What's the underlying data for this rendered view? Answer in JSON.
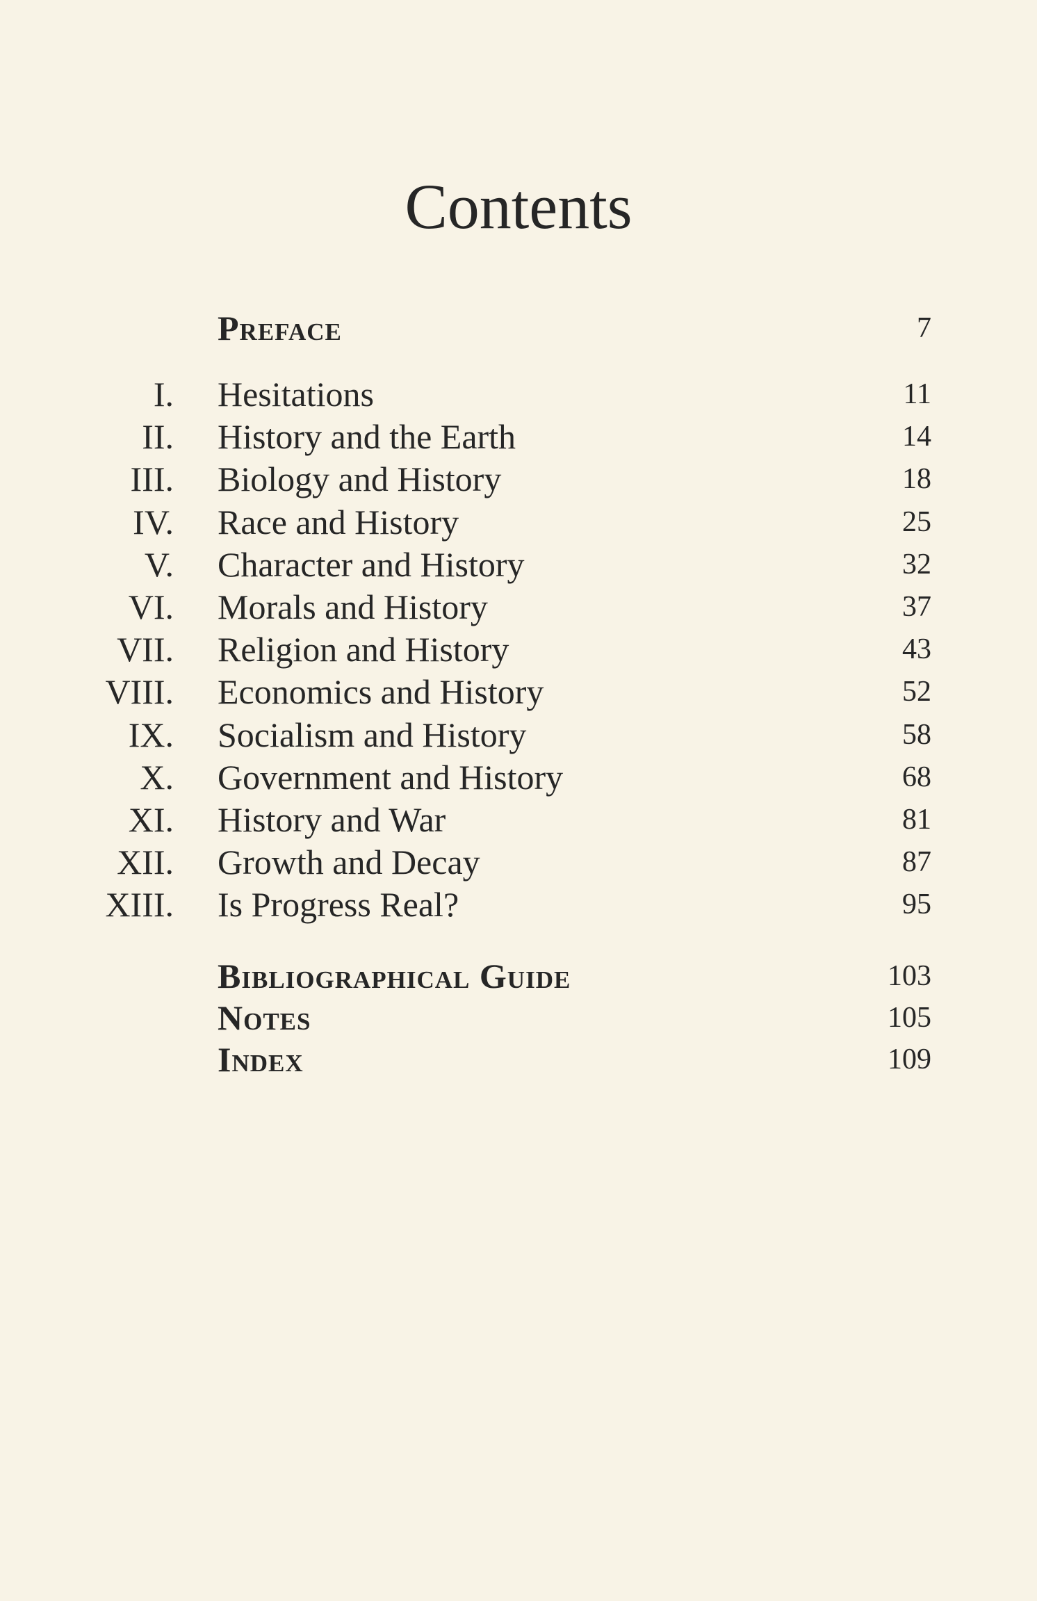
{
  "title": "Contents",
  "preface": {
    "label": "Preface",
    "page": "7"
  },
  "chapters": [
    {
      "numeral": "I.",
      "title": "Hesitations",
      "page": "11"
    },
    {
      "numeral": "II.",
      "title": "History and the Earth",
      "page": "14"
    },
    {
      "numeral": "III.",
      "title": "Biology and History",
      "page": "18"
    },
    {
      "numeral": "IV.",
      "title": "Race and History",
      "page": "25"
    },
    {
      "numeral": "V.",
      "title": "Character and History",
      "page": "32"
    },
    {
      "numeral": "VI.",
      "title": "Morals and History",
      "page": "37"
    },
    {
      "numeral": "VII.",
      "title": "Religion and History",
      "page": "43"
    },
    {
      "numeral": "VIII.",
      "title": "Economics and History",
      "page": "52"
    },
    {
      "numeral": "IX.",
      "title": "Socialism and History",
      "page": "58"
    },
    {
      "numeral": "X.",
      "title": "Government and History",
      "page": "68"
    },
    {
      "numeral": "XI.",
      "title": "History and War",
      "page": "81"
    },
    {
      "numeral": "XII.",
      "title": "Growth and Decay",
      "page": "87"
    },
    {
      "numeral": "XIII.",
      "title": "Is Progress Real?",
      "page": "95"
    }
  ],
  "back_matter": [
    {
      "label": "Bibliographical Guide",
      "page": "103"
    },
    {
      "label": "Notes",
      "page": "105"
    },
    {
      "label": "Index",
      "page": "109"
    }
  ]
}
